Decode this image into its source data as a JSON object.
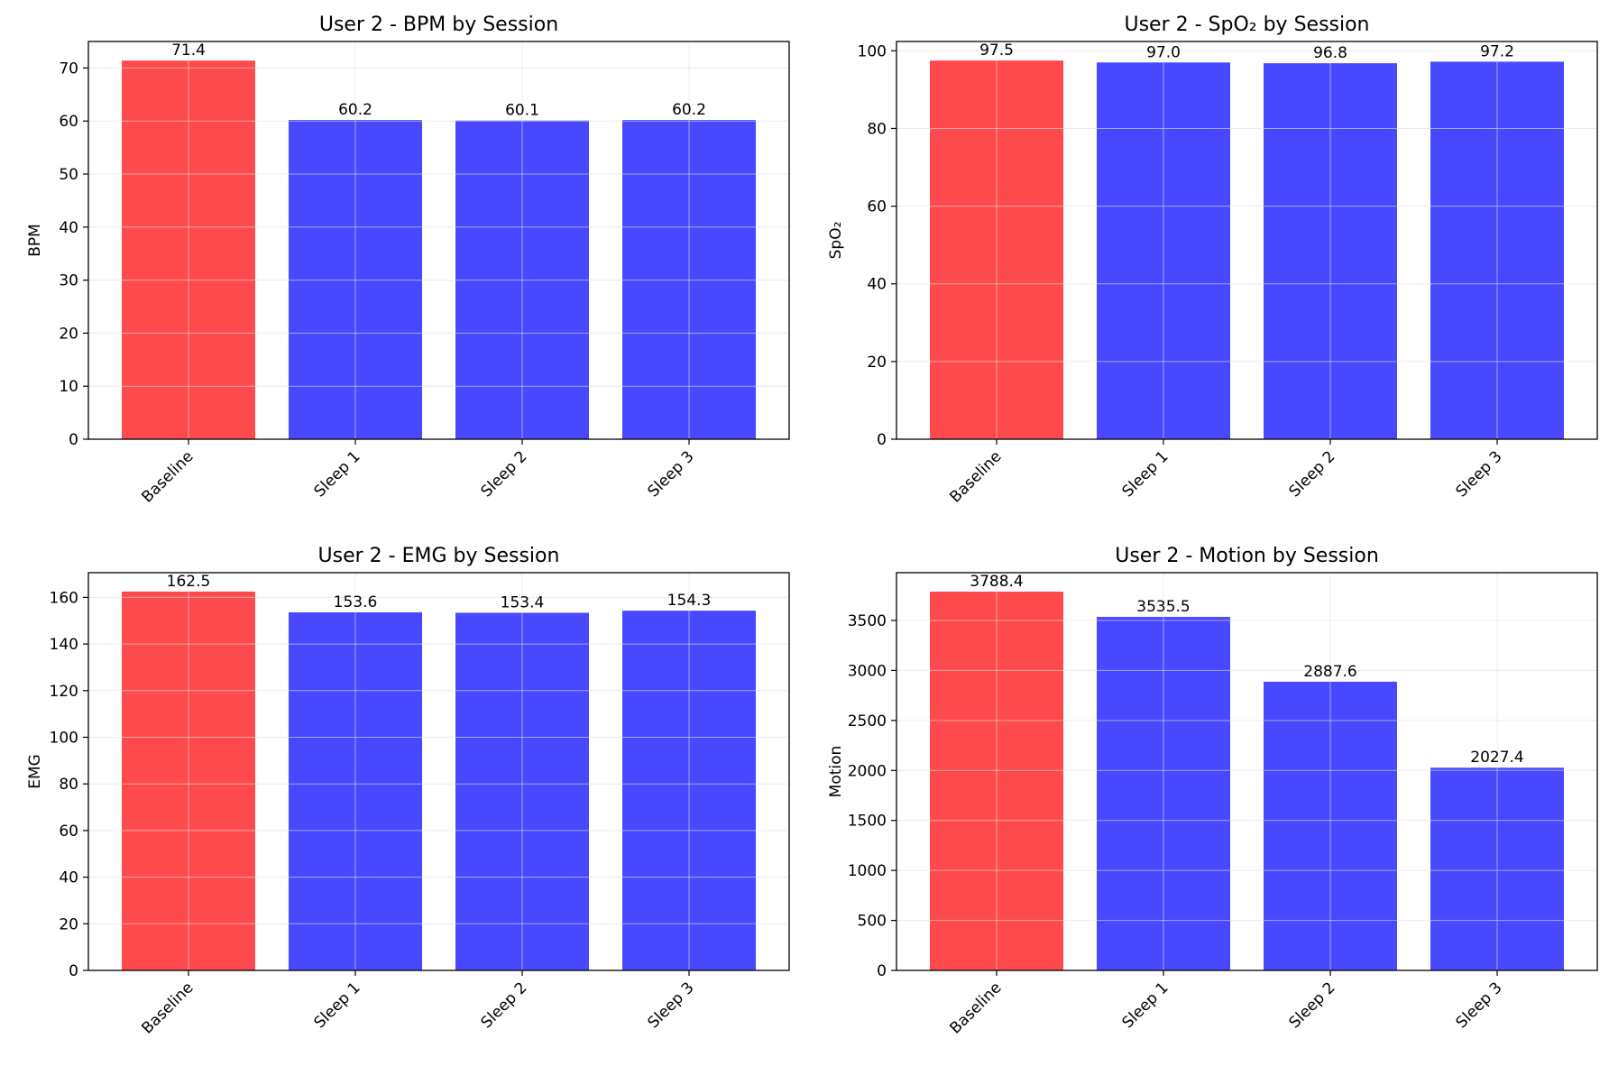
{
  "figure": {
    "background": "#ffffff"
  },
  "style": {
    "baseline_color": "#ff4a4d",
    "sleep_color": "#4848ff",
    "grid_color": "#e0e0e0"
  },
  "chart_data": [
    {
      "type": "bar",
      "title": "User 2 - BPM by Session",
      "xlabel": "",
      "ylabel": "BPM",
      "categories": [
        "Baseline",
        "Sleep 1",
        "Sleep 2",
        "Sleep 3"
      ],
      "values": [
        71.4,
        60.2,
        60.1,
        60.2
      ],
      "value_labels": [
        "71.4",
        "60.2",
        "60.1",
        "60.2"
      ],
      "ylim": [
        0,
        75
      ],
      "yticks": [
        0,
        10,
        20,
        30,
        40,
        50,
        60,
        70
      ],
      "grid": true,
      "bar_colors": [
        "#ff4a4d",
        "#4848ff",
        "#4848ff",
        "#4848ff"
      ]
    },
    {
      "type": "bar",
      "title": "User 2 - SpO₂ by Session",
      "xlabel": "",
      "ylabel": "SpO₂",
      "categories": [
        "Baseline",
        "Sleep 1",
        "Sleep 2",
        "Sleep 3"
      ],
      "values": [
        97.5,
        97.0,
        96.8,
        97.2
      ],
      "value_labels": [
        "97.5",
        "97.0",
        "96.8",
        "97.2"
      ],
      "ylim": [
        0,
        102.4
      ],
      "yticks": [
        0,
        20,
        40,
        60,
        80,
        100
      ],
      "grid": true,
      "bar_colors": [
        "#ff4a4d",
        "#4848ff",
        "#4848ff",
        "#4848ff"
      ]
    },
    {
      "type": "bar",
      "title": "User 2 - EMG by Session",
      "xlabel": "",
      "ylabel": "EMG",
      "categories": [
        "Baseline",
        "Sleep 1",
        "Sleep 2",
        "Sleep 3"
      ],
      "values": [
        162.5,
        153.6,
        153.4,
        154.3
      ],
      "value_labels": [
        "162.5",
        "153.6",
        "153.4",
        "154.3"
      ],
      "ylim": [
        0,
        170.6
      ],
      "yticks": [
        0,
        20,
        40,
        60,
        80,
        100,
        120,
        140,
        160
      ],
      "grid": true,
      "bar_colors": [
        "#ff4a4d",
        "#4848ff",
        "#4848ff",
        "#4848ff"
      ]
    },
    {
      "type": "bar",
      "title": "User 2 - Motion by Session",
      "xlabel": "",
      "ylabel": "Motion",
      "categories": [
        "Baseline",
        "Sleep 1",
        "Sleep 2",
        "Sleep 3"
      ],
      "values": [
        3788.4,
        3535.5,
        2887.6,
        2027.4
      ],
      "value_labels": [
        "3788.4",
        "3535.5",
        "2887.6",
        "2027.4"
      ],
      "ylim": [
        0,
        3978
      ],
      "yticks": [
        0,
        500,
        1000,
        1500,
        2000,
        2500,
        3000,
        3500
      ],
      "grid": true,
      "bar_colors": [
        "#ff4a4d",
        "#4848ff",
        "#4848ff",
        "#4848ff"
      ]
    }
  ]
}
